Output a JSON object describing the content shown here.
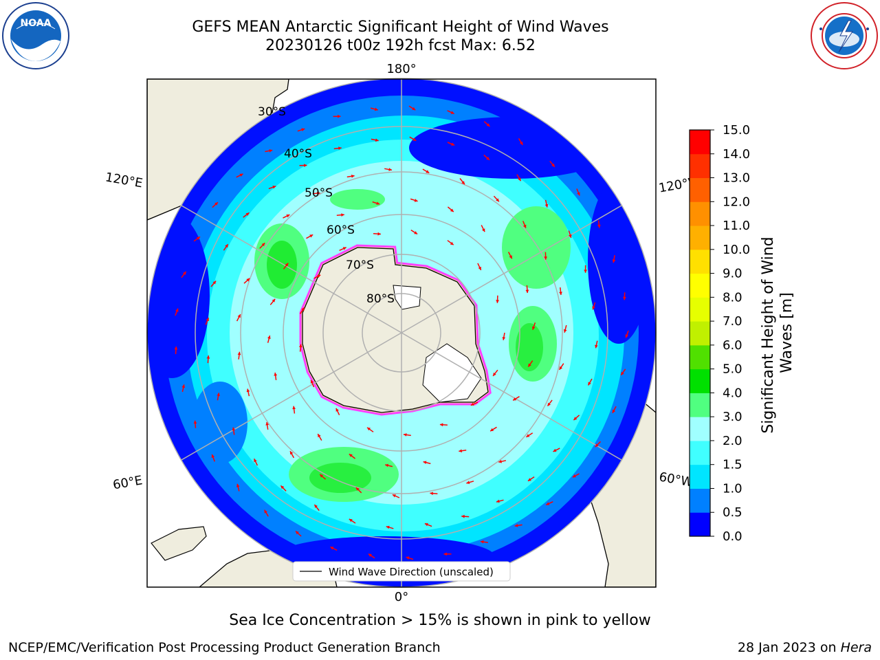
{
  "title": {
    "line1": "GEFS MEAN Antarctic Significant Height of Wind Waves",
    "line2": "20230126 t00z 192h fcst   Max: 6.52"
  },
  "logos": {
    "left": {
      "icon": "noaa-logo",
      "text": "NOAA"
    },
    "right": {
      "icon": "nws-logo",
      "text": "NATIONAL WEATHER SERVICE"
    }
  },
  "map": {
    "projection": "south-polar-stereographic",
    "lat_labels": [
      "30°S",
      "40°S",
      "50°S",
      "60°S",
      "70°S",
      "80°S"
    ],
    "lon_labels": {
      "top": "180°",
      "bottom": "0°",
      "upper_left": "120°E",
      "upper_right": "120°W",
      "lower_left": "60°E",
      "lower_right": "60°W"
    },
    "legend_label": "Wind Wave Direction (unscaled)",
    "colors": {
      "land": "#efedde",
      "ocean_low": "#0010ff",
      "grid": "#b0b0b0",
      "arrow": "#ff0000"
    }
  },
  "colorbar": {
    "label": "Significant Height of Wind Waves [m]",
    "ticks": [
      "0.0",
      "0.5",
      "1.0",
      "1.5",
      "2.0",
      "3.0",
      "4.0",
      "5.0",
      "6.0",
      "7.0",
      "8.0",
      "9.0",
      "10.0",
      "11.0",
      "12.0",
      "13.0",
      "14.0",
      "15.0"
    ],
    "colors": [
      "#0000ff",
      "#0080ff",
      "#00e5ff",
      "#40ffff",
      "#a0ffff",
      "#50ff80",
      "#00e000",
      "#50e000",
      "#c0f000",
      "#e6ff00",
      "#ffff00",
      "#ffe000",
      "#ffb000",
      "#ff9000",
      "#ff6000",
      "#ff3000",
      "#ff0000"
    ]
  },
  "note": "Sea Ice Concentration > 15% is shown in pink to yellow",
  "footer": {
    "left": "NCEP/EMC/Verification Post Processing Product Generation Branch",
    "right_prefix": "28 Jan 2023 on ",
    "right_host": "Hera"
  }
}
